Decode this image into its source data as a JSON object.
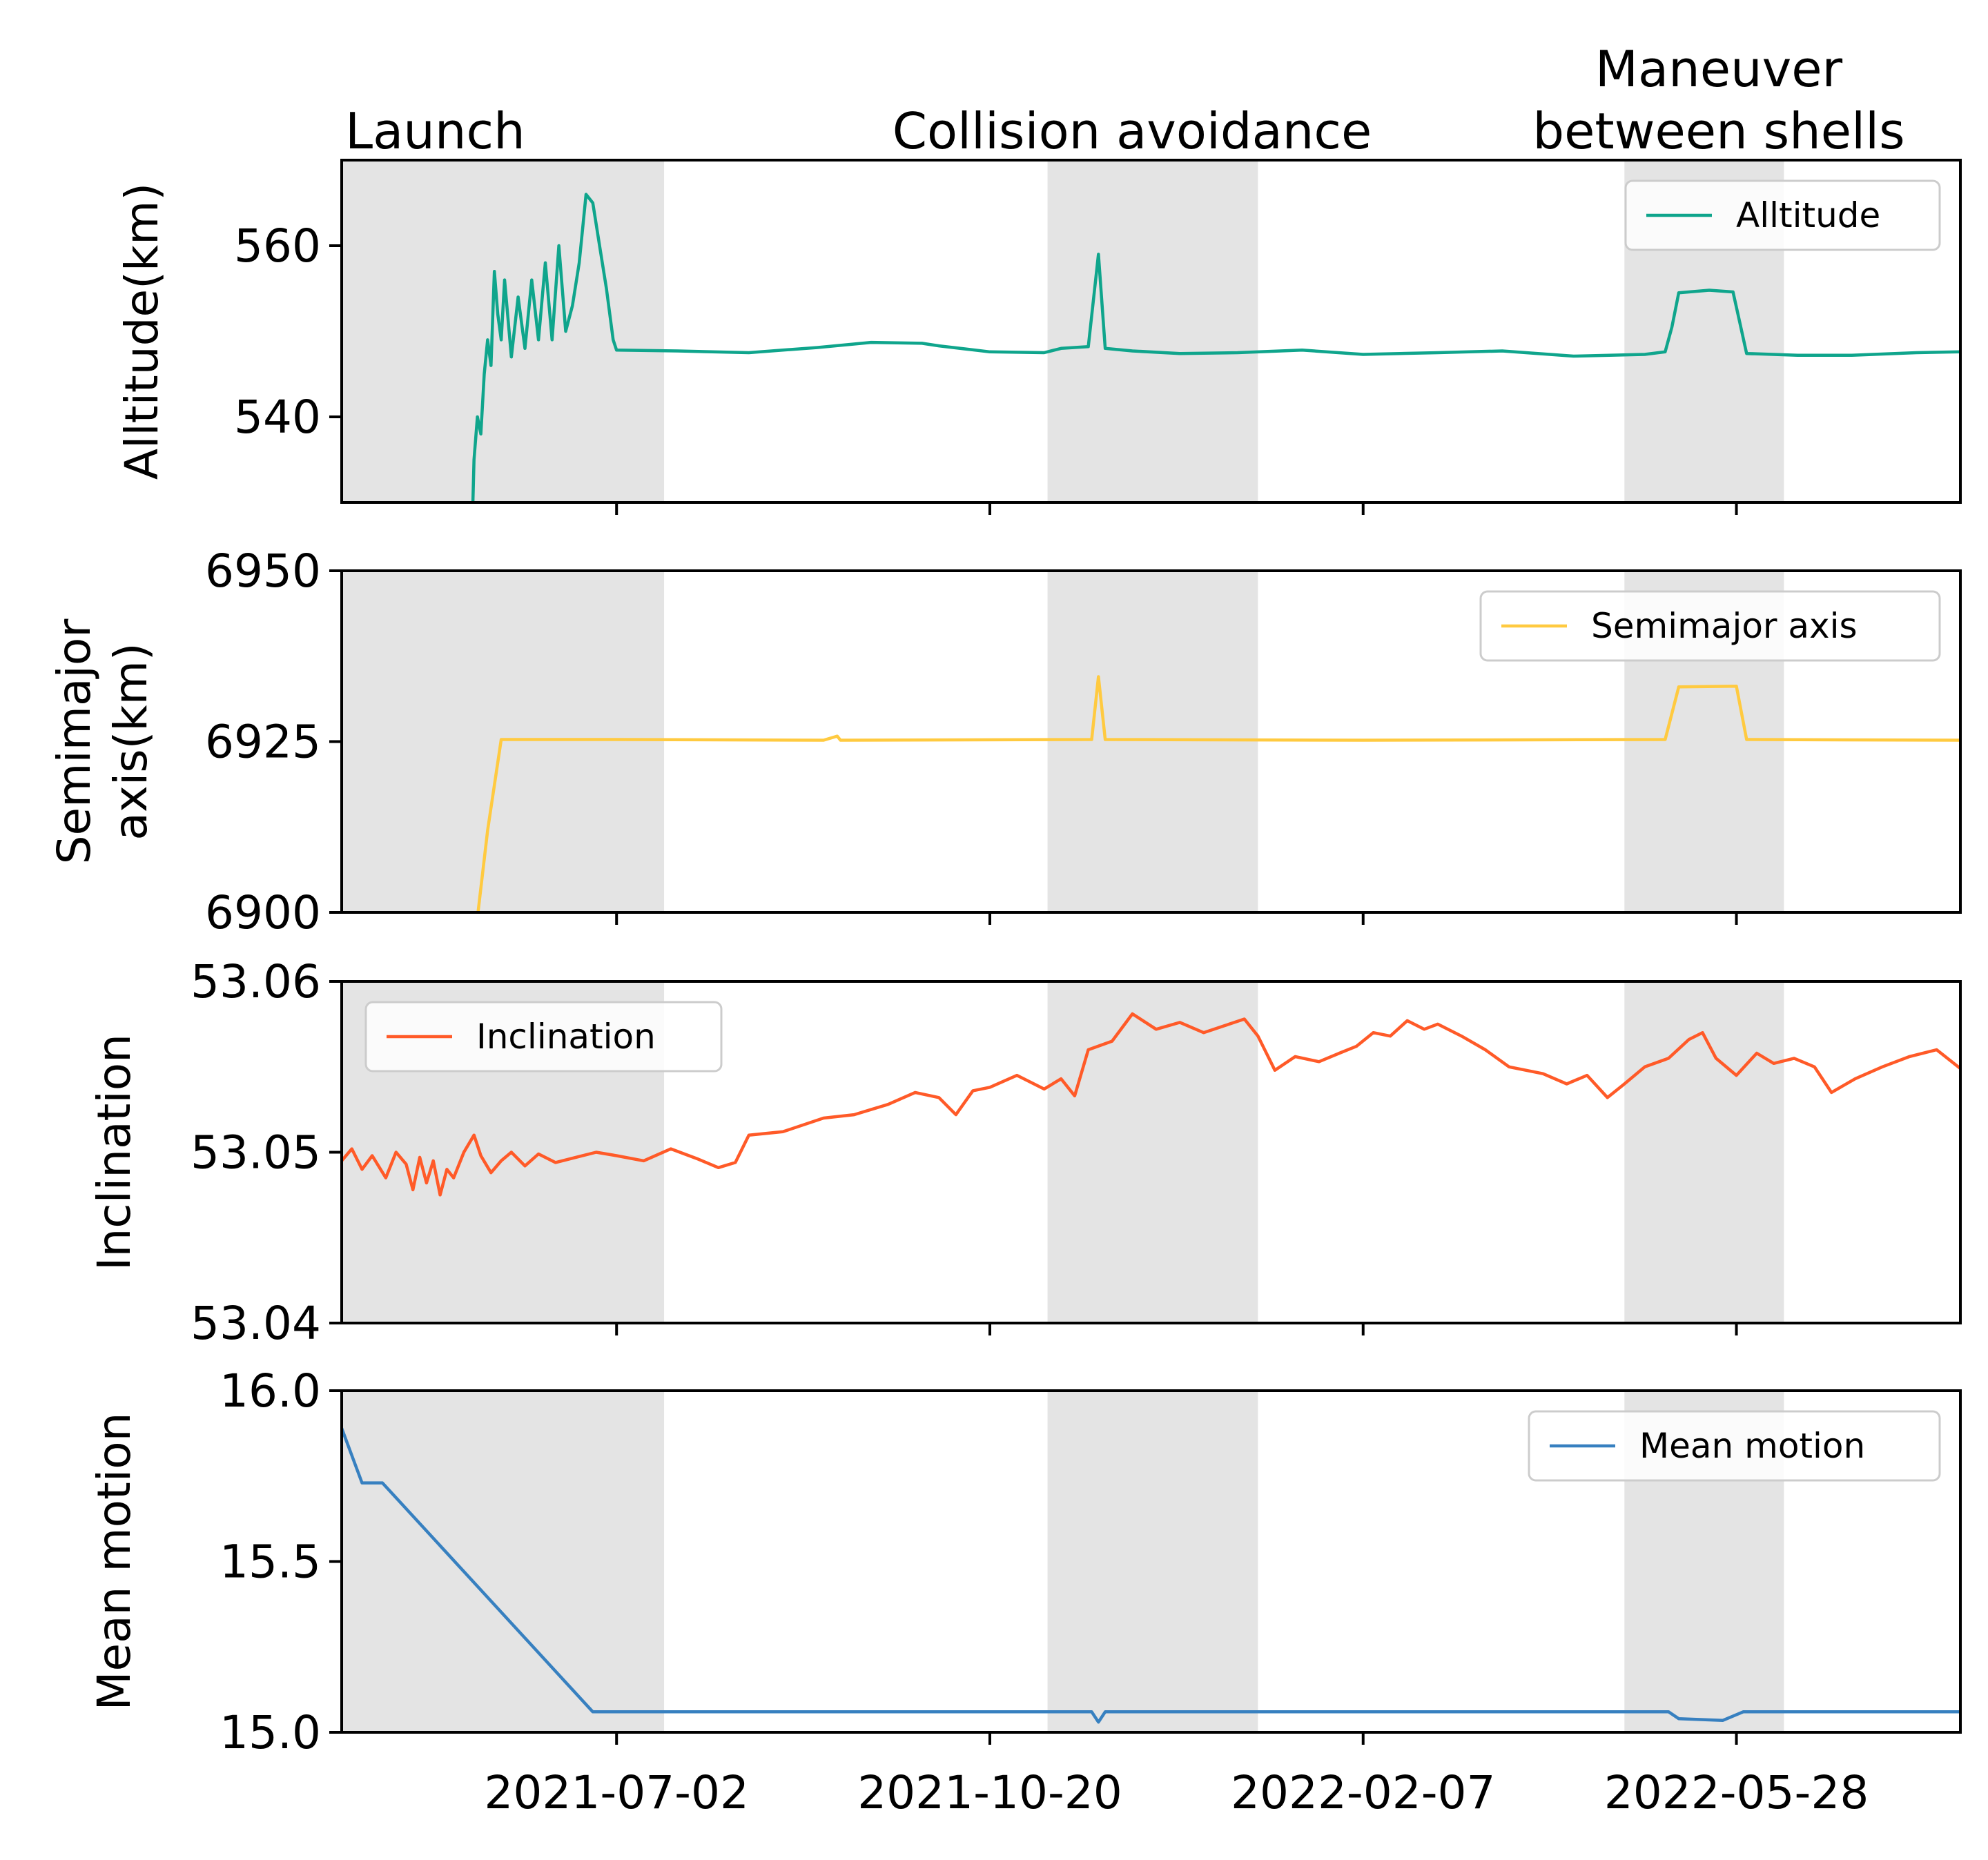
{
  "chart_data": {
    "type": "line",
    "x_axis": {
      "type": "date",
      "range": [
        "2021-04-12",
        "2022-08-02"
      ],
      "tick_labels": [
        "2021-07-02",
        "2021-10-20",
        "2022-02-07",
        "2022-05-28"
      ]
    },
    "shaded_regions": [
      {
        "start": "2021-04-12",
        "end": "2021-07-16"
      },
      {
        "start": "2021-11-06",
        "end": "2022-01-07"
      },
      {
        "start": "2022-04-25",
        "end": "2022-06-11"
      }
    ],
    "annotations": [
      {
        "lines": [
          "Launch"
        ]
      },
      {
        "lines": [
          "Collision avoidance"
        ]
      },
      {
        "lines": [
          "Maneuver",
          "between shells"
        ]
      }
    ],
    "panels": [
      {
        "ylabel": [
          "Alltitude(km)"
        ],
        "ylim": [
          530,
          570
        ],
        "yticks": [
          540,
          560
        ],
        "legend": {
          "label": "Alltitude",
          "position": "upper right"
        },
        "series": {
          "name": "Alltitude",
          "color": "#0fa58c",
          "points": [
            [
              "2021-05-20",
              520
            ],
            [
              "2021-05-21",
              535
            ],
            [
              "2021-05-22",
              540
            ],
            [
              "2021-05-23",
              538
            ],
            [
              "2021-05-24",
              545
            ],
            [
              "2021-05-25",
              549
            ],
            [
              "2021-05-26",
              546
            ],
            [
              "2021-05-27",
              557
            ],
            [
              "2021-05-28",
              552
            ],
            [
              "2021-05-29",
              549
            ],
            [
              "2021-05-30",
              556
            ],
            [
              "2021-06-01",
              547
            ],
            [
              "2021-06-03",
              554
            ],
            [
              "2021-06-05",
              548
            ],
            [
              "2021-06-07",
              556
            ],
            [
              "2021-06-09",
              549
            ],
            [
              "2021-06-11",
              558
            ],
            [
              "2021-06-13",
              549
            ],
            [
              "2021-06-15",
              560
            ],
            [
              "2021-06-17",
              550
            ],
            [
              "2021-06-19",
              553
            ],
            [
              "2021-06-21",
              558
            ],
            [
              "2021-06-23",
              566
            ],
            [
              "2021-06-25",
              565
            ],
            [
              "2021-06-27",
              560
            ],
            [
              "2021-06-29",
              555
            ],
            [
              "2021-07-01",
              549
            ],
            [
              "2021-07-02",
              547.8
            ],
            [
              "2021-07-20",
              547.7
            ],
            [
              "2021-08-10",
              547.5
            ],
            [
              "2021-08-30",
              548.1
            ],
            [
              "2021-09-15",
              548.7
            ],
            [
              "2021-09-30",
              548.6
            ],
            [
              "2021-10-05",
              548.3
            ],
            [
              "2021-10-20",
              547.6
            ],
            [
              "2021-11-05",
              547.5
            ],
            [
              "2021-11-10",
              548.0
            ],
            [
              "2021-11-18",
              548.2
            ],
            [
              "2021-11-21",
              559.0
            ],
            [
              "2021-11-23",
              548.0
            ],
            [
              "2021-12-01",
              547.7
            ],
            [
              "2021-12-15",
              547.4
            ],
            [
              "2022-01-01",
              547.5
            ],
            [
              "2022-01-20",
              547.8
            ],
            [
              "2022-02-07",
              547.3
            ],
            [
              "2022-03-01",
              547.5
            ],
            [
              "2022-03-20",
              547.7
            ],
            [
              "2022-04-10",
              547.1
            ],
            [
              "2022-05-01",
              547.3
            ],
            [
              "2022-05-07",
              547.6
            ],
            [
              "2022-05-09",
              550.5
            ],
            [
              "2022-05-11",
              554.5
            ],
            [
              "2022-05-20",
              554.8
            ],
            [
              "2022-05-27",
              554.6
            ],
            [
              "2022-05-29",
              551.0
            ],
            [
              "2022-05-31",
              547.4
            ],
            [
              "2022-06-15",
              547.2
            ],
            [
              "2022-07-01",
              547.2
            ],
            [
              "2022-07-20",
              547.5
            ],
            [
              "2022-08-02",
              547.6
            ]
          ]
        }
      },
      {
        "ylabel": [
          "Semimajor",
          "axis(km)"
        ],
        "ylim": [
          6900,
          6950
        ],
        "yticks": [
          6900,
          6925,
          6950
        ],
        "legend": {
          "label": "Semimajor axis",
          "position": "upper right"
        },
        "series": {
          "name": "Semimajor axis",
          "color": "#ffca40",
          "points": [
            [
              "2021-05-21",
              6895
            ],
            [
              "2021-05-25",
              6912
            ],
            [
              "2021-05-29",
              6925.3
            ],
            [
              "2021-06-20",
              6925.3
            ],
            [
              "2021-07-02",
              6925.3
            ],
            [
              "2021-09-01",
              6925.2
            ],
            [
              "2021-09-05",
              6925.8
            ],
            [
              "2021-09-06",
              6925.2
            ],
            [
              "2021-11-19",
              6925.3
            ],
            [
              "2021-11-21",
              6934.5
            ],
            [
              "2021-11-23",
              6925.3
            ],
            [
              "2022-02-07",
              6925.2
            ],
            [
              "2022-05-07",
              6925.3
            ],
            [
              "2022-05-11",
              6933.0
            ],
            [
              "2022-05-28",
              6933.1
            ],
            [
              "2022-05-31",
              6925.3
            ],
            [
              "2022-08-02",
              6925.2
            ]
          ]
        }
      },
      {
        "ylabel": [
          "Inclination"
        ],
        "ylim": [
          53.04,
          53.06
        ],
        "yticks": [
          53.04,
          53.05,
          53.06
        ],
        "legend": {
          "label": "Inclination",
          "position": "upper left"
        },
        "series": {
          "name": "Inclination",
          "color": "#ff5a28",
          "points": [
            [
              "2021-04-12",
              53.0495
            ],
            [
              "2021-04-15",
              53.0502
            ],
            [
              "2021-04-18",
              53.049
            ],
            [
              "2021-04-21",
              53.0498
            ],
            [
              "2021-04-25",
              53.0485
            ],
            [
              "2021-04-28",
              53.05
            ],
            [
              "2021-05-01",
              53.0493
            ],
            [
              "2021-05-03",
              53.0478
            ],
            [
              "2021-05-05",
              53.0497
            ],
            [
              "2021-05-07",
              53.0482
            ],
            [
              "2021-05-09",
              53.0495
            ],
            [
              "2021-05-11",
              53.0475
            ],
            [
              "2021-05-13",
              53.049
            ],
            [
              "2021-05-15",
              53.0485
            ],
            [
              "2021-05-18",
              53.05
            ],
            [
              "2021-05-21",
              53.051
            ],
            [
              "2021-05-23",
              53.0498
            ],
            [
              "2021-05-26",
              53.0488
            ],
            [
              "2021-05-29",
              53.0495
            ],
            [
              "2021-06-01",
              53.05
            ],
            [
              "2021-06-05",
              53.0492
            ],
            [
              "2021-06-09",
              53.0499
            ],
            [
              "2021-06-14",
              53.0494
            ],
            [
              "2021-06-20",
              53.0497
            ],
            [
              "2021-06-26",
              53.05
            ],
            [
              "2021-07-02",
              53.0498
            ],
            [
              "2021-07-10",
              53.0495
            ],
            [
              "2021-07-18",
              53.0502
            ],
            [
              "2021-07-26",
              53.0496
            ],
            [
              "2021-08-01",
              53.0491
            ],
            [
              "2021-08-06",
              53.0494
            ],
            [
              "2021-08-10",
              53.051
            ],
            [
              "2021-08-20",
              53.0512
            ],
            [
              "2021-09-01",
              53.052
            ],
            [
              "2021-09-10",
              53.0522
            ],
            [
              "2021-09-20",
              53.0528
            ],
            [
              "2021-09-28",
              53.0535
            ],
            [
              "2021-10-05",
              53.0532
            ],
            [
              "2021-10-10",
              53.0522
            ],
            [
              "2021-10-15",
              53.0536
            ],
            [
              "2021-10-20",
              53.0538
            ],
            [
              "2021-10-28",
              53.0545
            ],
            [
              "2021-11-05",
              53.0537
            ],
            [
              "2021-11-10",
              53.0543
            ],
            [
              "2021-11-14",
              53.0533
            ],
            [
              "2021-11-18",
              53.056
            ],
            [
              "2021-11-25",
              53.0565
            ],
            [
              "2021-12-01",
              53.0581
            ],
            [
              "2021-12-08",
              53.0572
            ],
            [
              "2021-12-15",
              53.0576
            ],
            [
              "2021-12-22",
              53.057
            ],
            [
              "2021-12-28",
              53.0574
            ],
            [
              "2022-01-03",
              53.0578
            ],
            [
              "2022-01-07",
              53.0568
            ],
            [
              "2022-01-12",
              53.0548
            ],
            [
              "2022-01-18",
              53.0556
            ],
            [
              "2022-01-25",
              53.0553
            ],
            [
              "2022-01-31",
              53.0558
            ],
            [
              "2022-02-05",
              53.0562
            ],
            [
              "2022-02-10",
              53.057
            ],
            [
              "2022-02-15",
              53.0568
            ],
            [
              "2022-02-20",
              53.0577
            ],
            [
              "2022-02-25",
              53.0572
            ],
            [
              "2022-03-01",
              53.0575
            ],
            [
              "2022-03-08",
              53.0568
            ],
            [
              "2022-03-15",
              53.056
            ],
            [
              "2022-03-22",
              53.055
            ],
            [
              "2022-04-01",
              53.0546
            ],
            [
              "2022-04-08",
              53.054
            ],
            [
              "2022-04-14",
              53.0545
            ],
            [
              "2022-04-20",
              53.0532
            ],
            [
              "2022-04-25",
              53.054
            ],
            [
              "2022-05-01",
              53.055
            ],
            [
              "2022-05-08",
              53.0555
            ],
            [
              "2022-05-14",
              53.0566
            ],
            [
              "2022-05-18",
              53.057
            ],
            [
              "2022-05-22",
              53.0555
            ],
            [
              "2022-05-28",
              53.0545
            ],
            [
              "2022-06-03",
              53.0558
            ],
            [
              "2022-06-08",
              53.0552
            ],
            [
              "2022-06-14",
              53.0555
            ],
            [
              "2022-06-20",
              53.055
            ],
            [
              "2022-06-25",
              53.0535
            ],
            [
              "2022-07-02",
              53.0543
            ],
            [
              "2022-07-10",
              53.055
            ],
            [
              "2022-07-18",
              53.0556
            ],
            [
              "2022-07-26",
              53.056
            ],
            [
              "2022-08-02",
              53.0549
            ]
          ]
        }
      },
      {
        "ylabel": [
          "Mean motion"
        ],
        "ylim": [
          15.0,
          16.0
        ],
        "yticks": [
          15.0,
          15.5,
          16.0
        ],
        "legend": {
          "label": "Mean motion",
          "position": "upper right"
        },
        "series": {
          "name": "Mean motion",
          "color": "#3780c0",
          "points": [
            [
              "2021-04-12",
              15.89
            ],
            [
              "2021-04-18",
              15.73
            ],
            [
              "2021-04-24",
              15.73
            ],
            [
              "2021-06-25",
              15.06
            ],
            [
              "2021-11-19",
              15.06
            ],
            [
              "2021-11-21",
              15.03
            ],
            [
              "2021-11-23",
              15.06
            ],
            [
              "2022-05-08",
              15.06
            ],
            [
              "2022-05-11",
              15.04
            ],
            [
              "2022-05-24",
              15.035
            ],
            [
              "2022-05-30",
              15.06
            ],
            [
              "2022-08-02",
              15.06
            ]
          ]
        }
      }
    ]
  }
}
